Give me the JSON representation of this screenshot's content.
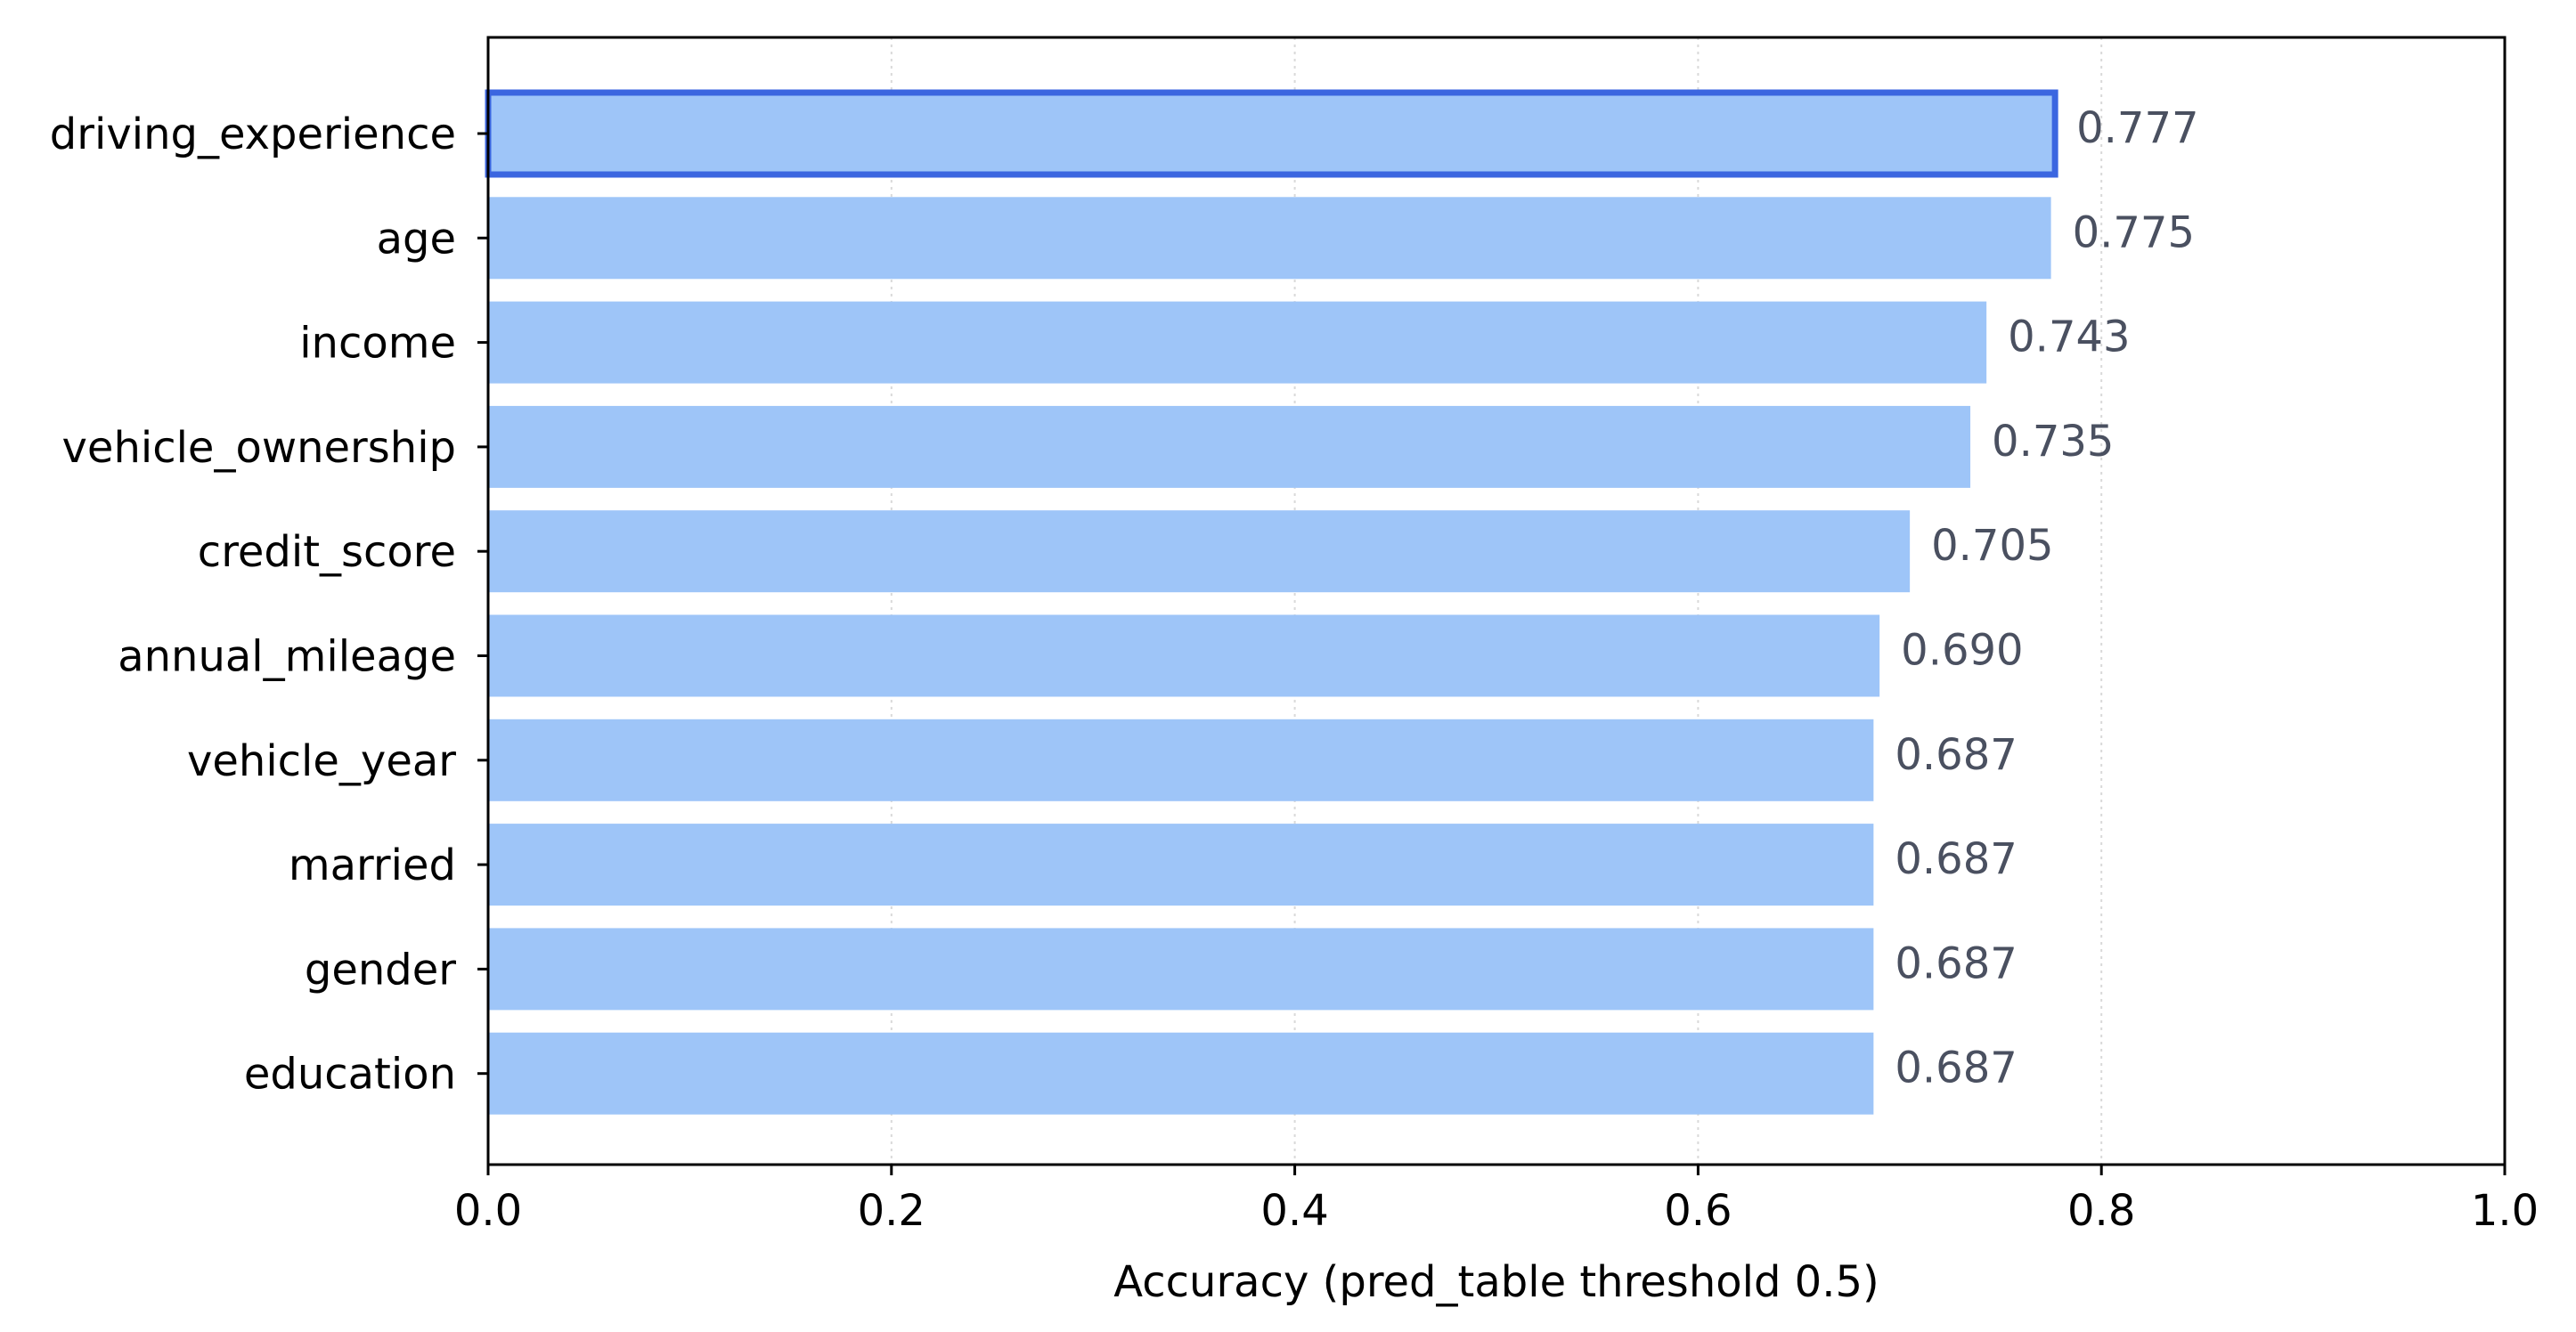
{
  "chart_data": {
    "type": "bar",
    "orientation": "horizontal",
    "title": "",
    "xlabel": "Accuracy (pred_table threshold 0.5)",
    "ylabel": "",
    "xlim": [
      0.0,
      1.0
    ],
    "xticks": [
      "0.0",
      "0.2",
      "0.4",
      "0.6",
      "0.8",
      "1.0"
    ],
    "grid": "x-axis dotted",
    "legend": "none",
    "categories": [
      "driving_experience",
      "age",
      "income",
      "vehicle_ownership",
      "credit_score",
      "annual_mileage",
      "vehicle_year",
      "married",
      "gender",
      "education"
    ],
    "values": [
      0.777,
      0.775,
      0.743,
      0.735,
      0.705,
      0.69,
      0.687,
      0.687,
      0.687,
      0.687
    ],
    "value_labels": [
      "0.777",
      "0.775",
      "0.743",
      "0.735",
      "0.705",
      "0.690",
      "0.687",
      "0.687",
      "0.687",
      "0.687"
    ],
    "highlighted_category": "driving_experience",
    "colors": {
      "bar": "#9ec5f8",
      "highlight_edge": "#3b66e0",
      "value_text": "#4a5060",
      "grid": "#d9d9d9",
      "axis": "#000000"
    }
  }
}
